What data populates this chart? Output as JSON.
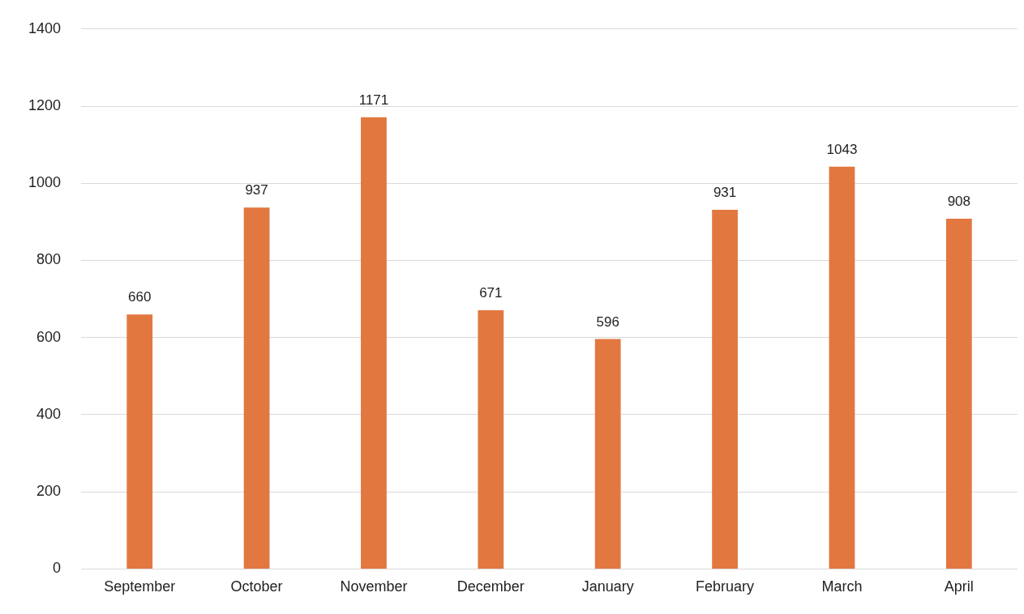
{
  "chart_data": {
    "type": "bar",
    "categories": [
      "September",
      "October",
      "November",
      "December",
      "January",
      "February",
      "March",
      "April"
    ],
    "values": [
      660,
      937,
      1171,
      671,
      596,
      931,
      1043,
      908
    ],
    "color": "#e2773f",
    "ylim": [
      0,
      1400
    ],
    "yticks": [
      0,
      200,
      400,
      600,
      800,
      1000,
      1200,
      1400
    ],
    "grid": "y",
    "data_labels": true,
    "legend": false
  }
}
